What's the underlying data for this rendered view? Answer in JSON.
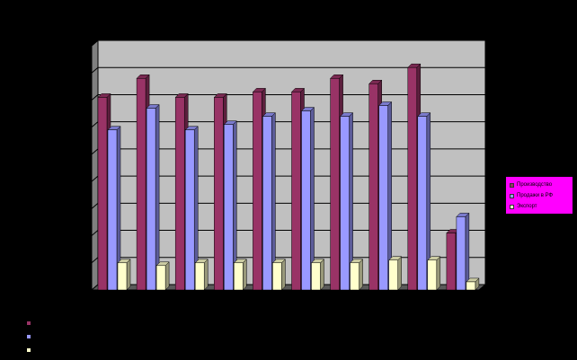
{
  "colors": {
    "background": "#000000",
    "plot_back": "#c0c0c0",
    "plot_side": "#808080",
    "floor": "#5a5a5a",
    "grid": "#000000",
    "legend_bg": "#ff00ff"
  },
  "chart_data": {
    "type": "bar",
    "title": "",
    "xlabel": "",
    "ylabel": "",
    "ylim": [
      0,
      9
    ],
    "grid": true,
    "legend_position": "right",
    "categories": [
      "",
      "",
      "",
      "",
      "",
      "",
      "",
      "",
      "",
      ""
    ],
    "series": [
      {
        "name": "Производство",
        "color": "#993366",
        "values": [
          7.1,
          7.8,
          7.1,
          7.1,
          7.3,
          7.3,
          7.8,
          7.6,
          8.2,
          2.1
        ]
      },
      {
        "name": "Продажи в РФ",
        "color": "#9999ff",
        "values": [
          5.9,
          6.7,
          5.9,
          6.1,
          6.4,
          6.6,
          6.4,
          6.8,
          6.4,
          2.7
        ]
      },
      {
        "name": "Экспорт",
        "color": "#ffffcc",
        "values": [
          1.0,
          0.9,
          1.0,
          1.0,
          1.0,
          1.0,
          1.0,
          1.1,
          1.1,
          0.3
        ]
      }
    ]
  }
}
